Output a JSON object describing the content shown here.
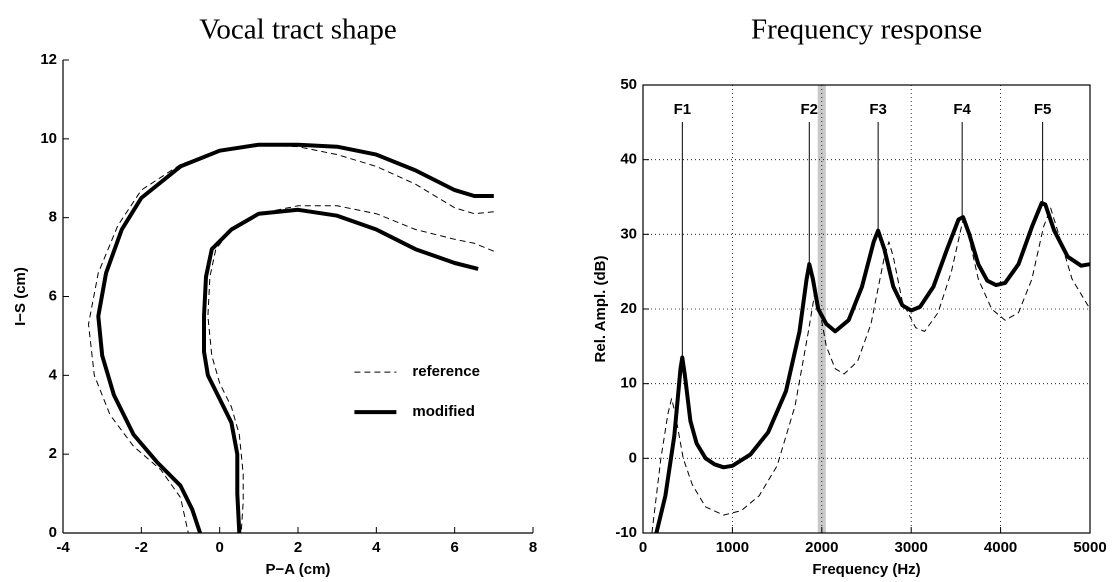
{
  "chart_data": [
    {
      "type": "line",
      "title": "Vocal tract shape",
      "xlabel": "P−A (cm)",
      "ylabel": "I−S (cm)",
      "xlim": [
        -4,
        8
      ],
      "ylim": [
        0,
        12
      ],
      "xticks": [
        -4,
        -2,
        0,
        2,
        4,
        6,
        8
      ],
      "yticks": [
        0,
        2,
        4,
        6,
        8,
        10,
        12
      ],
      "grid": false,
      "legend": "center right",
      "series": [
        {
          "name": "reference",
          "color": "#000000",
          "linestyle": "dashed",
          "linewidth": 1,
          "x": [
            7,
            6.5,
            6,
            5,
            4,
            3,
            2,
            1,
            0,
            -1,
            -2,
            -2.6,
            -3.1,
            -3.35,
            -3.2,
            -2.8,
            -2.2,
            -1.5,
            -1,
            -0.8,
            null,
            7,
            6.5,
            6,
            5,
            4,
            3,
            2,
            1,
            0.3,
            -0.1,
            -0.25,
            -0.3,
            -0.2,
            0,
            0.3,
            0.5,
            0.6,
            0.6,
            0.55
          ],
          "y": [
            8.15,
            8.1,
            8.25,
            8.85,
            9.3,
            9.6,
            9.8,
            9.85,
            9.7,
            9.35,
            8.7,
            7.8,
            6.6,
            5.3,
            4,
            3,
            2.2,
            1.6,
            0.9,
            0,
            null,
            7.15,
            7.35,
            7.45,
            7.7,
            8.1,
            8.3,
            8.3,
            8.1,
            7.7,
            7.2,
            6.5,
            5.5,
            4.5,
            3.8,
            3.2,
            2.5,
            1.5,
            0.8,
            0
          ]
        },
        {
          "name": "modified",
          "color": "#000000",
          "linestyle": "solid",
          "linewidth": 4,
          "x": [
            7,
            6.5,
            6,
            5,
            4,
            3,
            2,
            1,
            0,
            -1,
            -2,
            -2.5,
            -2.9,
            -3.1,
            -3,
            -2.7,
            -2.2,
            -1.6,
            -1,
            -0.7,
            -0.5,
            null,
            6.6,
            6,
            5,
            4,
            3,
            2,
            1,
            0.3,
            -0.2,
            -0.35,
            -0.4,
            -0.4,
            -0.3,
            0,
            0.3,
            0.45,
            0.45,
            0.5
          ],
          "y": [
            8.55,
            8.55,
            8.7,
            9.2,
            9.6,
            9.8,
            9.85,
            9.85,
            9.7,
            9.3,
            8.5,
            7.7,
            6.6,
            5.5,
            4.5,
            3.5,
            2.5,
            1.8,
            1.2,
            0.6,
            0,
            null,
            6.7,
            6.85,
            7.2,
            7.7,
            8.05,
            8.2,
            8.1,
            7.7,
            7.2,
            6.5,
            5.5,
            4.6,
            4,
            3.4,
            2.8,
            2,
            1,
            0
          ]
        }
      ]
    },
    {
      "type": "line",
      "title": "Frequency response",
      "xlabel": "Frequency (Hz)",
      "ylabel": "Rel. Ampl. (dB)",
      "xlim": [
        0,
        5000
      ],
      "ylim": [
        -10,
        50
      ],
      "xticks": [
        0,
        1000,
        2000,
        3000,
        4000,
        5000
      ],
      "yticks": [
        -10,
        0,
        10,
        20,
        30,
        40,
        50
      ],
      "grid": true,
      "highlight": [
        1955,
        2045
      ],
      "formants": [
        {
          "label": "F1",
          "x": 440,
          "y": 13.5
        },
        {
          "label": "F2",
          "x": 1860,
          "y": 26
        },
        {
          "label": "F3",
          "x": 2630,
          "y": 30.5
        },
        {
          "label": "F4",
          "x": 3570,
          "y": 32.3
        },
        {
          "label": "F5",
          "x": 4470,
          "y": 34.2
        }
      ],
      "series": [
        {
          "color": "#000000",
          "linestyle": "dashed",
          "linewidth": 1,
          "x": [
            100,
            200,
            280,
            320,
            360,
            450,
            550,
            700,
            900,
            1100,
            1300,
            1500,
            1700,
            1850,
            1920,
            1960,
            2050,
            2150,
            2250,
            2400,
            2550,
            2700,
            2750,
            2800,
            2900,
            3050,
            3150,
            3300,
            3450,
            3580,
            3620,
            3750,
            3900,
            4050,
            4200,
            4350,
            4480,
            4560,
            4650,
            4800,
            5000
          ],
          "y": [
            -10,
            0,
            6,
            8,
            6,
            0,
            -3.5,
            -6.5,
            -7.6,
            -7,
            -5,
            -1,
            7,
            17,
            22,
            21,
            15,
            12,
            11.3,
            13,
            18,
            27,
            29,
            27,
            21,
            17.5,
            17,
            19.5,
            25,
            32,
            31,
            24,
            20,
            18.5,
            19.5,
            24,
            31,
            33.5,
            30,
            24,
            20
          ]
        },
        {
          "color": "#000000",
          "linestyle": "solid",
          "linewidth": 4,
          "x": [
            150,
            250,
            350,
            420,
            440,
            470,
            530,
            600,
            700,
            800,
            900,
            1000,
            1200,
            1400,
            1600,
            1750,
            1830,
            1860,
            1900,
            1960,
            2050,
            2150,
            2300,
            2450,
            2580,
            2630,
            2700,
            2800,
            2900,
            3000,
            3100,
            3250,
            3400,
            3530,
            3580,
            3650,
            3750,
            3850,
            3950,
            4050,
            4200,
            4350,
            4460,
            4500,
            4600,
            4750,
            4900,
            5000
          ],
          "y": [
            -10,
            -5,
            3,
            12,
            13.5,
            11,
            5,
            2,
            0,
            -0.8,
            -1.2,
            -1,
            0.5,
            3.5,
            9,
            17,
            24,
            26,
            24,
            20,
            18,
            17,
            18.5,
            23,
            29,
            30.5,
            28,
            23,
            20.5,
            19.8,
            20.3,
            23,
            28,
            32,
            32.3,
            30,
            26,
            23.8,
            23.2,
            23.5,
            26,
            31,
            34.2,
            34,
            30.5,
            27,
            25.8,
            26
          ]
        }
      ]
    }
  ]
}
